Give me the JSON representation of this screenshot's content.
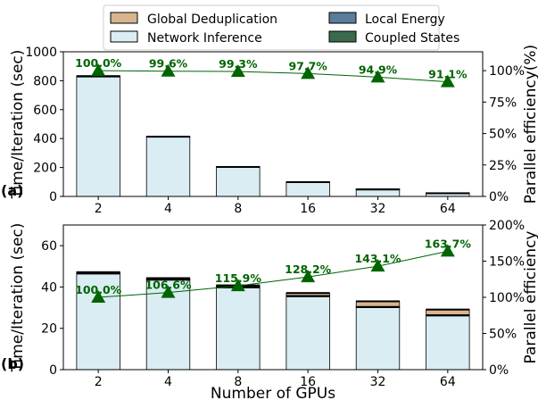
{
  "chart_data": [
    {
      "type": "bar",
      "panel_label": "(a)",
      "categories": [
        "2",
        "4",
        "8",
        "16",
        "32",
        "64"
      ],
      "series": [
        {
          "name": "Network Inference",
          "color": "#d9edf3",
          "values": [
            826,
            410,
            203,
            100,
            50,
            24
          ]
        },
        {
          "name": "Local Energy",
          "color": "#5b7d9a",
          "values": [
            2,
            1,
            1,
            0.5,
            0.5,
            0.5
          ]
        },
        {
          "name": "Coupled States",
          "color": "#3b6b4b",
          "values": [
            2,
            1,
            1,
            0.5,
            0.5,
            0.5
          ]
        },
        {
          "name": "Global Deduplication",
          "color": "#d8b58f",
          "values": [
            0.5,
            0.5,
            0.5,
            0.5,
            0.5,
            0.5
          ]
        }
      ],
      "top_band_color": "#000000",
      "top_band_values": [
        6,
        5,
        3,
        2,
        1,
        1
      ],
      "efficiency": {
        "values": [
          100.0,
          99.6,
          99.3,
          97.7,
          94.9,
          91.1
        ],
        "labels": [
          "100.0%",
          "99.6%",
          "99.3%",
          "97.7%",
          "94.9%",
          "91.1%"
        ],
        "color": "#006400"
      },
      "ylabel": "Time/Iteration (sec)",
      "ylim": [
        0,
        1000
      ],
      "yticks": [
        "0",
        "200",
        "400",
        "600",
        "800",
        "1000"
      ],
      "ytick_values": [
        0,
        200,
        400,
        600,
        800,
        1000
      ],
      "y2label": "Parallel efficiency(%)",
      "y2lim": [
        0,
        115
      ],
      "y2ticks": [
        "0%",
        "25%",
        "50%",
        "75%",
        "100%"
      ],
      "y2tick_values": [
        0,
        25,
        50,
        75,
        100
      ]
    },
    {
      "type": "bar",
      "panel_label": "(b)",
      "categories": [
        "2",
        "4",
        "8",
        "16",
        "32",
        "64"
      ],
      "series": [
        {
          "name": "Network Inference",
          "color": "#d9edf3",
          "values": [
            46.3,
            43.3,
            39.6,
            35.3,
            30.0,
            26.0
          ]
        },
        {
          "name": "Local Energy",
          "color": "#5b7d9a",
          "values": [
            0.3,
            0.3,
            0.3,
            0.3,
            0.3,
            0.3
          ]
        },
        {
          "name": "Coupled States",
          "color": "#3b6b4b",
          "values": [
            0.3,
            0.3,
            0.3,
            0.3,
            0.3,
            0.3
          ]
        },
        {
          "name": "Global Deduplication",
          "color": "#d8b58f",
          "values": [
            0.1,
            0.2,
            0.4,
            1.0,
            2.3,
            2.3
          ]
        }
      ],
      "top_band_color": "#000000",
      "top_band_values": [
        0.5,
        0.5,
        0.5,
        0.5,
        0.5,
        0.5
      ],
      "efficiency": {
        "values": [
          100.0,
          106.6,
          115.9,
          128.2,
          143.1,
          163.7
        ],
        "labels": [
          "100.0%",
          "106.6%",
          "115.9%",
          "128.2%",
          "143.1%",
          "163.7%"
        ],
        "color": "#006400"
      },
      "ylabel": "Time/Iteration (sec)",
      "xlabel": "Number of GPUs",
      "ylim": [
        0,
        70
      ],
      "yticks": [
        "0",
        "20",
        "40",
        "60"
      ],
      "ytick_values": [
        0,
        20,
        40,
        60
      ],
      "y2label": "Parallel efficiency",
      "y2lim": [
        0,
        200
      ],
      "y2ticks": [
        "0%",
        "50%",
        "100%",
        "150%",
        "200%"
      ],
      "y2tick_values": [
        0,
        50,
        100,
        150,
        200
      ]
    }
  ],
  "legend": {
    "placement": "top-center",
    "items": [
      {
        "label": "Global Deduplication",
        "color": "#d8b58f"
      },
      {
        "label": "Local Energy",
        "color": "#5b7d9a"
      },
      {
        "label": "Network Inference",
        "color": "#d9edf3"
      },
      {
        "label": "Coupled States",
        "color": "#3b6b4b"
      }
    ]
  }
}
